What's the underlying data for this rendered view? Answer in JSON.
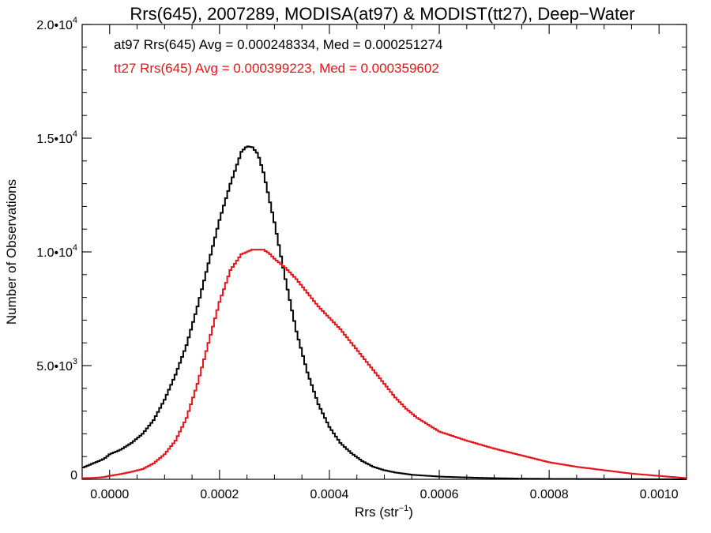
{
  "chart_data": {
    "type": "line",
    "title": "Rrs(645), 2007289, MODISA(at97) & MODIST(tt27), Deep−Water",
    "xlabel": "Rrs (str",
    "xlabel_sup": "−1",
    "xlabel_close": ")",
    "ylabel": "Number of Observations",
    "xlim": [
      -5e-05,
      0.00105
    ],
    "ylim": [
      0,
      20000
    ],
    "x_ticks": [
      {
        "v": 0.0,
        "label": "0.0000"
      },
      {
        "v": 0.0002,
        "label": "0.0002"
      },
      {
        "v": 0.0004,
        "label": "0.0004"
      },
      {
        "v": 0.0006,
        "label": "0.0006"
      },
      {
        "v": 0.0008,
        "label": "0.0008"
      },
      {
        "v": 0.001,
        "label": "0.0010"
      }
    ],
    "y_ticks": [
      {
        "v": 0,
        "base": "0",
        "exp": ""
      },
      {
        "v": 5000,
        "base": "5.0•10",
        "exp": "3"
      },
      {
        "v": 10000,
        "base": "1.0•10",
        "exp": "4"
      },
      {
        "v": 15000,
        "base": "1.5•10",
        "exp": "4"
      },
      {
        "v": 20000,
        "base": "2.0•10",
        "exp": "4"
      }
    ],
    "annotations": [
      {
        "text": "at97 Rrs(645) Avg = 0.000248334, Med = 0.000251274",
        "color": "#000000"
      },
      {
        "text": "tt27 Rrs(645) Avg = 0.000399223, Med = 0.000359602",
        "color": "#e8141b"
      }
    ],
    "series": [
      {
        "color": "#000000",
        "x": [
          -5e-05,
          -3e-05,
          -1e-05,
          0.0,
          2e-05,
          4e-05,
          6e-05,
          8e-05,
          0.0001,
          0.00012,
          0.00014,
          0.00016,
          0.00018,
          0.0002,
          0.00022,
          0.00024,
          0.00025,
          0.00026,
          0.00027,
          0.00028,
          0.0003,
          0.00032,
          0.00034,
          0.00036,
          0.00038,
          0.0004,
          0.00042,
          0.00044,
          0.00046,
          0.00048,
          0.0005,
          0.00052,
          0.00055,
          0.0006,
          0.00065,
          0.0007,
          0.00075,
          0.0008,
          0.0009,
          0.001,
          0.00105
        ],
        "y": [
          500,
          700,
          900,
          1100,
          1300,
          1600,
          2000,
          2600,
          3500,
          4600,
          5900,
          7600,
          9500,
          11400,
          13000,
          14400,
          14650,
          14600,
          14300,
          13500,
          11300,
          8800,
          6500,
          4700,
          3300,
          2300,
          1600,
          1150,
          800,
          550,
          400,
          300,
          200,
          120,
          80,
          50,
          30,
          20,
          10,
          5,
          0
        ]
      },
      {
        "color": "#e8141b",
        "x": [
          -5e-05,
          -3e-05,
          -1e-05,
          0.0,
          2e-05,
          4e-05,
          6e-05,
          8e-05,
          0.0001,
          0.00012,
          0.00014,
          0.00016,
          0.00018,
          0.0002,
          0.00022,
          0.00024,
          0.00026,
          0.00028,
          0.00029,
          0.0003,
          0.00032,
          0.00034,
          0.00036,
          0.00038,
          0.0004,
          0.00042,
          0.00044,
          0.00046,
          0.00048,
          0.0005,
          0.00052,
          0.00054,
          0.00056,
          0.0006,
          0.00065,
          0.0007,
          0.00075,
          0.0008,
          0.00085,
          0.0009,
          0.00095,
          0.001,
          0.00105
        ],
        "y": [
          50,
          60,
          100,
          150,
          230,
          330,
          450,
          700,
          1100,
          1700,
          2700,
          4200,
          6000,
          7800,
          9200,
          9900,
          10100,
          10100,
          9950,
          9700,
          9300,
          8800,
          8200,
          7600,
          7100,
          6600,
          6000,
          5400,
          4800,
          4200,
          3600,
          3100,
          2700,
          2100,
          1700,
          1350,
          1050,
          750,
          550,
          400,
          250,
          150,
          50
        ]
      }
    ]
  }
}
